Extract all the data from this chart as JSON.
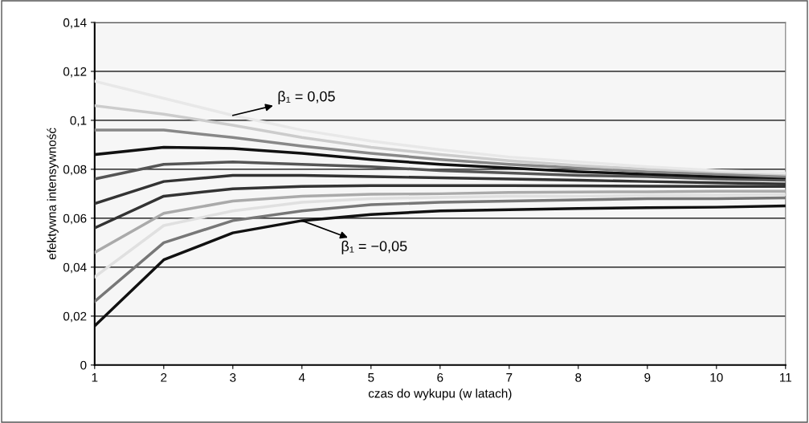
{
  "chart_data": {
    "type": "line",
    "xlabel": "czas do wykupu (w latach)",
    "ylabel": "efektywna intensywność",
    "x": [
      1,
      2,
      3,
      4,
      5,
      6,
      7,
      8,
      9,
      10,
      11
    ],
    "series": [
      {
        "color": "#111111",
        "values": [
          0.016,
          0.043,
          0.054,
          0.059,
          0.0615,
          0.063,
          0.0635,
          0.064,
          0.0643,
          0.0645,
          0.065
        ]
      },
      {
        "color": "#777777",
        "values": [
          0.026,
          0.05,
          0.059,
          0.063,
          0.0655,
          0.0665,
          0.067,
          0.0675,
          0.068,
          0.068,
          0.0683
        ]
      },
      {
        "color": "#e0e0e0",
        "values": [
          0.036,
          0.057,
          0.063,
          0.0665,
          0.068,
          0.0685,
          0.069,
          0.069,
          0.0693,
          0.0695,
          0.0697
        ]
      },
      {
        "color": "#aaaaaa",
        "values": [
          0.046,
          0.062,
          0.067,
          0.069,
          0.0698,
          0.07,
          0.0705,
          0.0707,
          0.0708,
          0.071,
          0.071
        ]
      },
      {
        "color": "#333333",
        "values": [
          0.056,
          0.069,
          0.072,
          0.073,
          0.0733,
          0.0733,
          0.0733,
          0.0732,
          0.0731,
          0.073,
          0.073
        ]
      },
      {
        "color": "#333333",
        "values": [
          0.066,
          0.075,
          0.0775,
          0.0775,
          0.077,
          0.0765,
          0.076,
          0.0755,
          0.075,
          0.0745,
          0.074
        ]
      },
      {
        "color": "#555555",
        "values": [
          0.076,
          0.082,
          0.083,
          0.082,
          0.081,
          0.0795,
          0.0785,
          0.0775,
          0.077,
          0.076,
          0.0755
        ]
      },
      {
        "color": "#111111",
        "values": [
          0.086,
          0.089,
          0.0885,
          0.0865,
          0.084,
          0.082,
          0.0805,
          0.079,
          0.078,
          0.077,
          0.0765
        ]
      },
      {
        "color": "#888888",
        "values": [
          0.096,
          0.096,
          0.093,
          0.0895,
          0.0865,
          0.084,
          0.082,
          0.0805,
          0.079,
          0.078,
          0.077
        ]
      },
      {
        "color": "#cccccc",
        "values": [
          0.106,
          0.1025,
          0.098,
          0.093,
          0.089,
          0.086,
          0.0835,
          0.0815,
          0.08,
          0.079,
          0.078
        ]
      },
      {
        "color": "#e8e8e8",
        "values": [
          0.116,
          0.109,
          0.102,
          0.096,
          0.0915,
          0.088,
          0.085,
          0.083,
          0.081,
          0.0795,
          0.0785
        ]
      }
    ],
    "xlim": [
      1,
      11
    ],
    "xticks": [
      1,
      2,
      3,
      4,
      5,
      6,
      7,
      8,
      9,
      10,
      11
    ],
    "ylim": [
      0,
      0.14
    ],
    "yticks": [
      {
        "value": 0,
        "label": "0"
      },
      {
        "value": 0.02,
        "label": "0,02"
      },
      {
        "value": 0.04,
        "label": "0,04"
      },
      {
        "value": 0.06,
        "label": "0,06"
      },
      {
        "value": 0.08,
        "label": "0,08"
      },
      {
        "value": 0.1,
        "label": "0,1"
      },
      {
        "value": 0.12,
        "label": "0,12"
      },
      {
        "value": 0.14,
        "label": "0,14"
      }
    ],
    "grid": "y",
    "marker": "none",
    "line_style": "solid",
    "annotations": [
      {
        "text": "β₁ = 0,05",
        "x": 3,
        "y": 0.102
      },
      {
        "text": "β₁ = −0,05",
        "x": 4,
        "y": 0.059
      }
    ]
  }
}
